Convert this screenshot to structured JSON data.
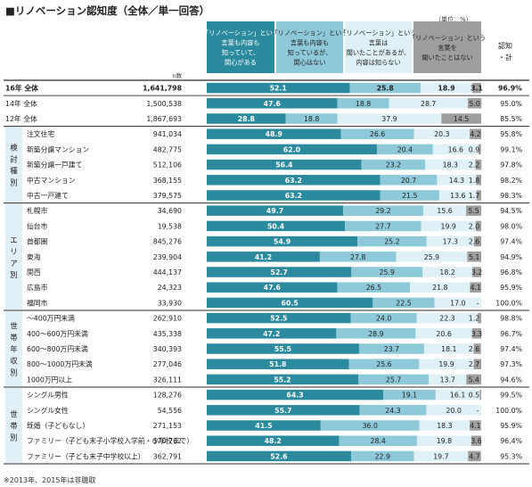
{
  "title": "■リノベーション認知度（全体／単一回答）",
  "unit_note": "（単位：%）",
  "footnote": "※2013年、2015年は非聴取",
  "n_label": "n数",
  "total_header": [
    "認知",
    "・計"
  ],
  "legend": [
    {
      "lines": [
        "「リノベーション」という",
        "言葉も内容も",
        "知っていて、",
        "関心がある"
      ],
      "color": "#2b8a9e",
      "text_color": "#ffffff"
    },
    {
      "lines": [
        "「リノベーション」という",
        "言葉も内容も",
        "知っているが、",
        "関心はない"
      ],
      "color": "#8ec9d9",
      "text_color": "#222222"
    },
    {
      "lines": [
        "「リノベーション」という",
        "言葉は",
        "聞いたことがあるが、",
        "内容は知らない"
      ],
      "color": "#dff0f6",
      "text_color": "#222222"
    },
    {
      "lines": [
        "「リノベーション」という",
        "言葉を",
        "聞いたことはない"
      ],
      "color": "#9e9e9e",
      "text_color": "#222222"
    }
  ],
  "colors": {
    "s1": "#2b8a9e",
    "s2": "#8ec9d9",
    "s3": "#dff0f6",
    "s4": "#9e9e9e",
    "group_bg": "#e0f0f6"
  },
  "chart_data": {
    "type": "bar",
    "orientation": "horizontal-stacked-100",
    "series_names": [
      "「リノベーション」という言葉も内容も知っていて、関心がある",
      "「リノベーション」という言葉も内容も知っているが、関心はない",
      "「リノベーション」という言葉は聞いたことがあるが、内容は知らない",
      "「リノベーション」という言葉を聞いたことはない"
    ],
    "rows": [
      {
        "group": "",
        "label": "16年  全体",
        "n": "1,641,798",
        "values": [
          52.1,
          25.8,
          18.9,
          3.1
        ],
        "total": "96.9%",
        "bold": true
      },
      {
        "group": "",
        "label": "14年  全体",
        "n": "1,500,538",
        "values": [
          47.6,
          18.8,
          28.7,
          5.0
        ],
        "total": "95.0%"
      },
      {
        "group": "",
        "label": "12年  全体",
        "n": "1,867,693",
        "values": [
          28.8,
          18.8,
          37.9,
          14.5
        ],
        "total": "85.5%"
      },
      {
        "group": "検討種別",
        "label": "注文住宅",
        "n": "941,034",
        "values": [
          48.9,
          26.6,
          20.3,
          4.2
        ],
        "total": "95.8%"
      },
      {
        "group": "検討種別",
        "label": "新築分譲マンション",
        "n": "482,775",
        "values": [
          62.0,
          20.4,
          16.6,
          0.9
        ],
        "total": "99.1%"
      },
      {
        "group": "検討種別",
        "label": "新築分譲一戸建て",
        "n": "512,106",
        "values": [
          56.4,
          23.2,
          18.3,
          2.2
        ],
        "total": "97.8%"
      },
      {
        "group": "検討種別",
        "label": "中古マンション",
        "n": "368,155",
        "values": [
          63.2,
          20.7,
          14.3,
          1.8
        ],
        "total": "98.2%"
      },
      {
        "group": "検討種別",
        "label": "中古一戸建て",
        "n": "379,575",
        "values": [
          63.2,
          21.5,
          13.6,
          1.7
        ],
        "total": "98.3%"
      },
      {
        "group": "エリア別",
        "label": "札幌市",
        "n": "34,690",
        "values": [
          49.7,
          29.2,
          15.6,
          5.5
        ],
        "total": "94.5%"
      },
      {
        "group": "エリア別",
        "label": "仙台市",
        "n": "19,538",
        "values": [
          50.4,
          27.7,
          19.9,
          2.0
        ],
        "total": "98.0%"
      },
      {
        "group": "エリア別",
        "label": "首都圏",
        "n": "845,276",
        "values": [
          54.9,
          25.2,
          17.3,
          2.6
        ],
        "total": "97.4%"
      },
      {
        "group": "エリア別",
        "label": "東海",
        "n": "239,904",
        "values": [
          41.2,
          27.8,
          25.9,
          5.1
        ],
        "total": "94.9%"
      },
      {
        "group": "エリア別",
        "label": "関西",
        "n": "444,137",
        "values": [
          52.7,
          25.9,
          18.2,
          3.2
        ],
        "total": "96.8%"
      },
      {
        "group": "エリア別",
        "label": "広島市",
        "n": "24,323",
        "values": [
          47.6,
          26.5,
          21.8,
          4.1
        ],
        "total": "95.9%"
      },
      {
        "group": "エリア別",
        "label": "福岡市",
        "n": "33,930",
        "values": [
          60.5,
          22.5,
          17.0,
          0.0
        ],
        "total": "100.0%",
        "s4_label": "-"
      },
      {
        "group": "世帯年収別",
        "label": "～400万円未満",
        "n": "262,910",
        "values": [
          52.5,
          24.0,
          22.3,
          1.2
        ],
        "total": "98.8%"
      },
      {
        "group": "世帯年収別",
        "label": "400～600万円未満",
        "n": "435,338",
        "values": [
          47.2,
          28.9,
          20.6,
          3.3
        ],
        "total": "96.7%"
      },
      {
        "group": "世帯年収別",
        "label": "600～800万円未満",
        "n": "340,393",
        "values": [
          55.5,
          23.7,
          18.1,
          2.6
        ],
        "total": "97.4%"
      },
      {
        "group": "世帯年収別",
        "label": "800～1000万円未満",
        "n": "277,046",
        "values": [
          51.8,
          25.6,
          19.9,
          2.7
        ],
        "total": "97.3%"
      },
      {
        "group": "世帯年収別",
        "label": "1000万円以上",
        "n": "326,111",
        "values": [
          55.2,
          25.7,
          13.7,
          5.4
        ],
        "total": "94.6%"
      },
      {
        "group": "世帯別",
        "label": "シングル男性",
        "n": "128,276",
        "values": [
          64.3,
          19.1,
          16.1,
          0.5
        ],
        "total": "99.5%"
      },
      {
        "group": "世帯別",
        "label": "シングル女性",
        "n": "54,556",
        "values": [
          55.7,
          24.3,
          20.0,
          0.0
        ],
        "total": "100.0%",
        "s4_label": "-"
      },
      {
        "group": "世帯別",
        "label": "既婚（子どもなし）",
        "n": "271,153",
        "values": [
          41.5,
          36.0,
          18.3,
          4.1
        ],
        "total": "95.9%"
      },
      {
        "group": "世帯別",
        "label": "ファミリー（子ども末子小学校入学前・小学校まで）",
        "n": "570,762",
        "values": [
          48.2,
          28.4,
          19.8,
          3.6
        ],
        "total": "96.4%"
      },
      {
        "group": "世帯別",
        "label": "ファミリー（子ども末子中学校以上）",
        "n": "362,791",
        "values": [
          52.6,
          22.9,
          19.7,
          4.7
        ],
        "total": "95.3%"
      }
    ],
    "groups": [
      {
        "name": "検討種別",
        "chars": [
          "検",
          "討",
          "種",
          "別"
        ]
      },
      {
        "name": "エリア別",
        "chars": [
          "エ",
          "リ",
          "ア",
          "別"
        ]
      },
      {
        "name": "世帯年収別",
        "chars": [
          "世",
          "帯",
          "年",
          "収",
          "別"
        ]
      },
      {
        "name": "世帯別",
        "chars": [
          "世",
          "帯",
          "別"
        ]
      }
    ]
  }
}
